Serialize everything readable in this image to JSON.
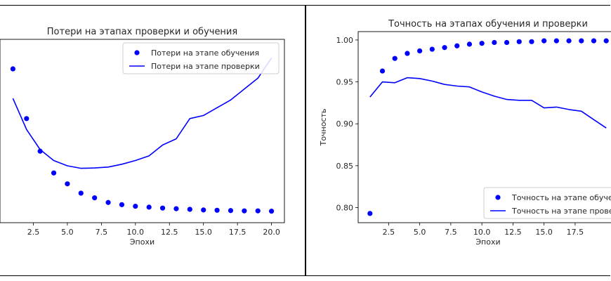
{
  "chart_data": [
    {
      "type": "line",
      "title": "Потери на этапах проверки и обучения",
      "xlabel": "Эпохи",
      "ylabel": "",
      "xlim": [
        0.05,
        20.95
      ],
      "ylim": [
        0.095,
        0.685
      ],
      "xticks": [
        2.5,
        5.0,
        7.5,
        10.0,
        12.5,
        15.0,
        17.5,
        20.0
      ],
      "xtick_labels": [
        "2.5",
        "5.0",
        "7.5",
        "10.0",
        "12.5",
        "15.0",
        "17.5",
        "20.0"
      ],
      "legend_position": "top-right",
      "series": [
        {
          "name": "Потери на этапе обучения",
          "style": "points",
          "color": "#0000ff",
          "x": [
            1,
            2,
            3,
            4,
            5,
            6,
            7,
            8,
            9,
            10,
            11,
            12,
            13,
            14,
            15,
            16,
            17,
            18,
            19,
            20
          ],
          "values": [
            0.59,
            0.43,
            0.325,
            0.255,
            0.22,
            0.19,
            0.175,
            0.16,
            0.153,
            0.148,
            0.145,
            0.142,
            0.14,
            0.138,
            0.136,
            0.135,
            0.134,
            0.133,
            0.133,
            0.132
          ]
        },
        {
          "name": "Потери на этапе проверки",
          "style": "line",
          "color": "#0000ff",
          "x": [
            1,
            2,
            3,
            4,
            5,
            6,
            7,
            8,
            9,
            10,
            11,
            12,
            13,
            14,
            15,
            16,
            17,
            18,
            19,
            20
          ],
          "values": [
            0.495,
            0.395,
            0.33,
            0.295,
            0.278,
            0.27,
            0.271,
            0.274,
            0.283,
            0.295,
            0.31,
            0.345,
            0.365,
            0.43,
            0.44,
            0.465,
            0.49,
            0.525,
            0.56,
            0.625
          ]
        }
      ]
    },
    {
      "type": "line",
      "title": "Точность на этапах обучения и проверки",
      "xlabel": "Эпохи",
      "ylabel": "Точность",
      "xlim": [
        0.05,
        20.95
      ],
      "ylim": [
        0.782,
        1.01
      ],
      "xticks": [
        2.5,
        5.0,
        7.5,
        10.0,
        12.5,
        15.0,
        17.5
      ],
      "xtick_labels": [
        "2.5",
        "5.0",
        "7.5",
        "10.0",
        "12.5",
        "15.0",
        "17.5"
      ],
      "yticks": [
        0.8,
        0.85,
        0.9,
        0.95,
        1.0
      ],
      "ytick_labels": [
        "0.80",
        "0.85",
        "0.90",
        "0.95",
        "1.00"
      ],
      "legend_position": "bottom-right",
      "series": [
        {
          "name": "Точность на этапе обучения",
          "style": "points",
          "color": "#0000ff",
          "x": [
            1,
            2,
            3,
            4,
            5,
            6,
            7,
            8,
            9,
            10,
            11,
            12,
            13,
            14,
            15,
            16,
            17,
            18,
            19,
            20
          ],
          "values": [
            0.793,
            0.963,
            0.978,
            0.984,
            0.987,
            0.989,
            0.991,
            0.993,
            0.995,
            0.996,
            0.997,
            0.997,
            0.998,
            0.998,
            0.999,
            0.999,
            0.999,
            0.999,
            0.999,
            0.999
          ]
        },
        {
          "name": "Точность на этапе проверки",
          "style": "line",
          "color": "#0000ff",
          "x": [
            1,
            2,
            3,
            4,
            5,
            6,
            7,
            8,
            9,
            10,
            11,
            12,
            13,
            14,
            15,
            16,
            17,
            18,
            19,
            20
          ],
          "values": [
            0.932,
            0.95,
            0.949,
            0.955,
            0.954,
            0.951,
            0.947,
            0.945,
            0.944,
            0.938,
            0.933,
            0.929,
            0.928,
            0.928,
            0.919,
            0.92,
            0.917,
            0.915,
            0.905,
            0.895
          ]
        }
      ]
    }
  ]
}
